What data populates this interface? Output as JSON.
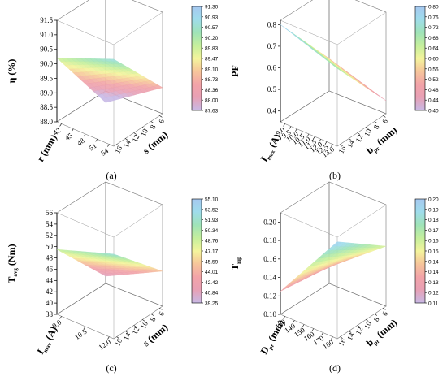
{
  "colormap": [
    "#c8b9e6",
    "#e8a0b4",
    "#f2a3a8",
    "#f6c79a",
    "#f4f49c",
    "#c6ef9c",
    "#9fe3b8",
    "#9fdcec",
    "#a6c8f0"
  ],
  "chart_data": [
    {
      "type": "surface",
      "panel_label": "(a)",
      "zlabel": "η (%)",
      "x_axis": {
        "label": "r",
        "sub": "",
        "ticks": [
          "42",
          "45",
          "48",
          "51",
          "54"
        ],
        "unit": "(mm)"
      },
      "y_axis": {
        "label": "s",
        "sub": "",
        "ticks": [
          "6",
          "8",
          "10",
          "12",
          "14",
          "16"
        ],
        "unit": "(mm)"
      },
      "z_ticks": [
        "88.0",
        "88.5",
        "89.0",
        "89.5",
        "90.0",
        "90.5",
        "91.0",
        "91.5"
      ],
      "zlim": [
        88.0,
        91.5
      ],
      "colorbar": [
        "91.30",
        "90.93",
        "90.57",
        "90.20",
        "89.83",
        "89.47",
        "89.10",
        "88.73",
        "88.36",
        "88.00",
        "87.63"
      ],
      "surface": {
        "c00": 90.2,
        "c10": 91.0,
        "c11": 88.9,
        "c01": 87.6
      }
    },
    {
      "type": "surface",
      "panel_label": "(b)",
      "zlabel": "PF",
      "x_axis": {
        "label": "I",
        "sub": "max",
        "ticks": [
          "9.0",
          "9.5",
          "10.0",
          "10.5",
          "11.0",
          "11.5",
          "12.0",
          "12.5",
          "13.0"
        ],
        "unit": "(A)"
      },
      "y_axis": {
        "label": "b",
        "sub": "pr",
        "ticks": [
          "6",
          "8",
          "10",
          "12",
          "14",
          "16"
        ],
        "unit": "(mm)"
      },
      "z_ticks": [
        "0.4",
        "0.5",
        "0.6",
        "0.7",
        "0.8"
      ],
      "zlim": [
        0.35,
        0.82
      ],
      "colorbar": [
        "0.80",
        "0.76",
        "0.72",
        "0.68",
        "0.64",
        "0.60",
        "0.56",
        "0.52",
        "0.48",
        "0.44",
        "0.40"
      ],
      "surface": {
        "c00": 0.8,
        "c10": 0.71,
        "c11": 0.41,
        "c01": 0.5
      }
    },
    {
      "type": "surface",
      "panel_label": "(c)",
      "zlabel": "T",
      "zlabel_sub": "avg",
      "zlabel_unit": "(Nm)",
      "x_axis": {
        "label": "I",
        "sub": "max",
        "ticks": [
          "9.0",
          "10.5",
          "12.0"
        ],
        "unit": "(A)"
      },
      "y_axis": {
        "label": "s",
        "sub": "",
        "ticks": [
          "6",
          "8",
          "10",
          "12",
          "14",
          "16"
        ],
        "unit": "(mm)"
      },
      "z_ticks": [
        "38",
        "40",
        "42",
        "44",
        "46",
        "48",
        "50",
        "52",
        "54",
        "56"
      ],
      "zlim": [
        38,
        56
      ],
      "colorbar": [
        "55.10",
        "53.52",
        "51.93",
        "50.34",
        "48.76",
        "47.17",
        "45.59",
        "44.01",
        "42.42",
        "40.84",
        "39.25"
      ],
      "surface": {
        "c00": 49.5,
        "c10": 53.0,
        "c11": 44.2,
        "c01": 39.3
      }
    },
    {
      "type": "surface",
      "panel_label": "(d)",
      "zlabel": "T",
      "zlabel_sub": "rip",
      "x_axis": {
        "label": "D",
        "sub": "pr",
        "ticks": [
          "130",
          "140",
          "150",
          "160",
          "170",
          "180"
        ],
        "unit": "(mm)"
      },
      "y_axis": {
        "label": "b",
        "sub": "pr",
        "ticks": [
          "6",
          "8",
          "10",
          "12",
          "14",
          "16"
        ],
        "unit": "(mm)"
      },
      "z_ticks": [
        "0.10",
        "0.12",
        "0.14",
        "0.16",
        "0.18",
        "0.20"
      ],
      "zlim": [
        0.1,
        0.21
      ],
      "colorbar": [
        "0.20",
        "0.19",
        "0.18",
        "0.17",
        "0.16",
        "0.15",
        "0.14",
        "0.14",
        "0.13",
        "0.12",
        "0.11"
      ],
      "surface": {
        "c00": 0.125,
        "c10": 0.205,
        "c11": 0.165,
        "c01": 0.118
      }
    }
  ]
}
